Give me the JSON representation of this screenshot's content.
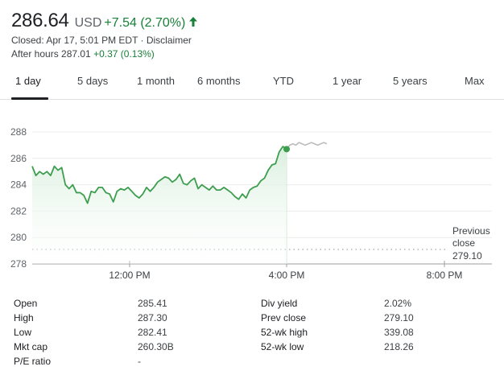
{
  "quote": {
    "price": "286.64",
    "currency": "USD",
    "change": "+7.54 (2.70%)",
    "closed_line": "Closed: Apr 17, 5:01 PM EDT · Disclaimer",
    "after_hours_label": "After hours 287.01",
    "after_hours_change": "+0.37 (0.13%)",
    "up_color": "#188038"
  },
  "tabs": [
    {
      "label": "1 day",
      "active": true
    },
    {
      "label": "5 days",
      "active": false
    },
    {
      "label": "1 month",
      "active": false
    },
    {
      "label": "6 months",
      "active": false
    },
    {
      "label": "YTD",
      "active": false
    },
    {
      "label": "1 year",
      "active": false
    },
    {
      "label": "5 years",
      "active": false
    },
    {
      "label": "Max",
      "active": false
    }
  ],
  "chart_data": {
    "type": "line",
    "y_ticks": [
      "288",
      "286",
      "284",
      "282",
      "280",
      "278"
    ],
    "x_ticks": [
      "12:00 PM",
      "4:00 PM",
      "8:00 PM"
    ],
    "ylim": [
      278,
      288.4
    ],
    "previous_close": {
      "label_line1": "Previous",
      "label_line2": "close",
      "value": "279.10"
    },
    "colors": {
      "line": "#3e9e4f",
      "after_hours": "#bdbdbd",
      "fill": "#e6f4ea",
      "baseline": "#9e9e9e"
    },
    "series": [
      {
        "session": "regular",
        "values": [
          285.4,
          284.7,
          285.0,
          284.8,
          285.0,
          284.7,
          285.4,
          285.1,
          285.3,
          284.0,
          283.7,
          284.0,
          283.4,
          283.4,
          283.2,
          282.6,
          283.5,
          283.4,
          283.8,
          283.8,
          283.4,
          283.3,
          282.7,
          283.5,
          283.7,
          283.6,
          283.8,
          283.5,
          283.2,
          283.0,
          283.3,
          283.8,
          283.5,
          283.8,
          284.2,
          284.4,
          284.6,
          284.5,
          284.2,
          284.4,
          284.8,
          284.1,
          284.0,
          284.3,
          284.5,
          283.7,
          284.0,
          283.8,
          283.6,
          283.9,
          283.6,
          283.6,
          283.8,
          283.6,
          283.4,
          283.1,
          282.9,
          283.3,
          283.0,
          283.6,
          283.8,
          283.9,
          284.3,
          284.5,
          285.1,
          285.5,
          285.6,
          286.5,
          286.9,
          286.7
        ]
      },
      {
        "session": "after_hours",
        "values": [
          286.7,
          287.0,
          287.1,
          287.0,
          287.2,
          287.1,
          287.0,
          287.1,
          287.2,
          287.1,
          287.0,
          287.1,
          287.2,
          287.1
        ]
      }
    ]
  },
  "stats": [
    [
      "Open",
      "285.41",
      "Div yield",
      "2.02%"
    ],
    [
      "High",
      "287.30",
      "Prev close",
      "279.10"
    ],
    [
      "Low",
      "282.41",
      "52-wk high",
      "339.08"
    ],
    [
      "Mkt cap",
      "260.30B",
      "52-wk low",
      "218.26"
    ],
    [
      "P/E ratio",
      "-",
      "",
      ""
    ]
  ]
}
